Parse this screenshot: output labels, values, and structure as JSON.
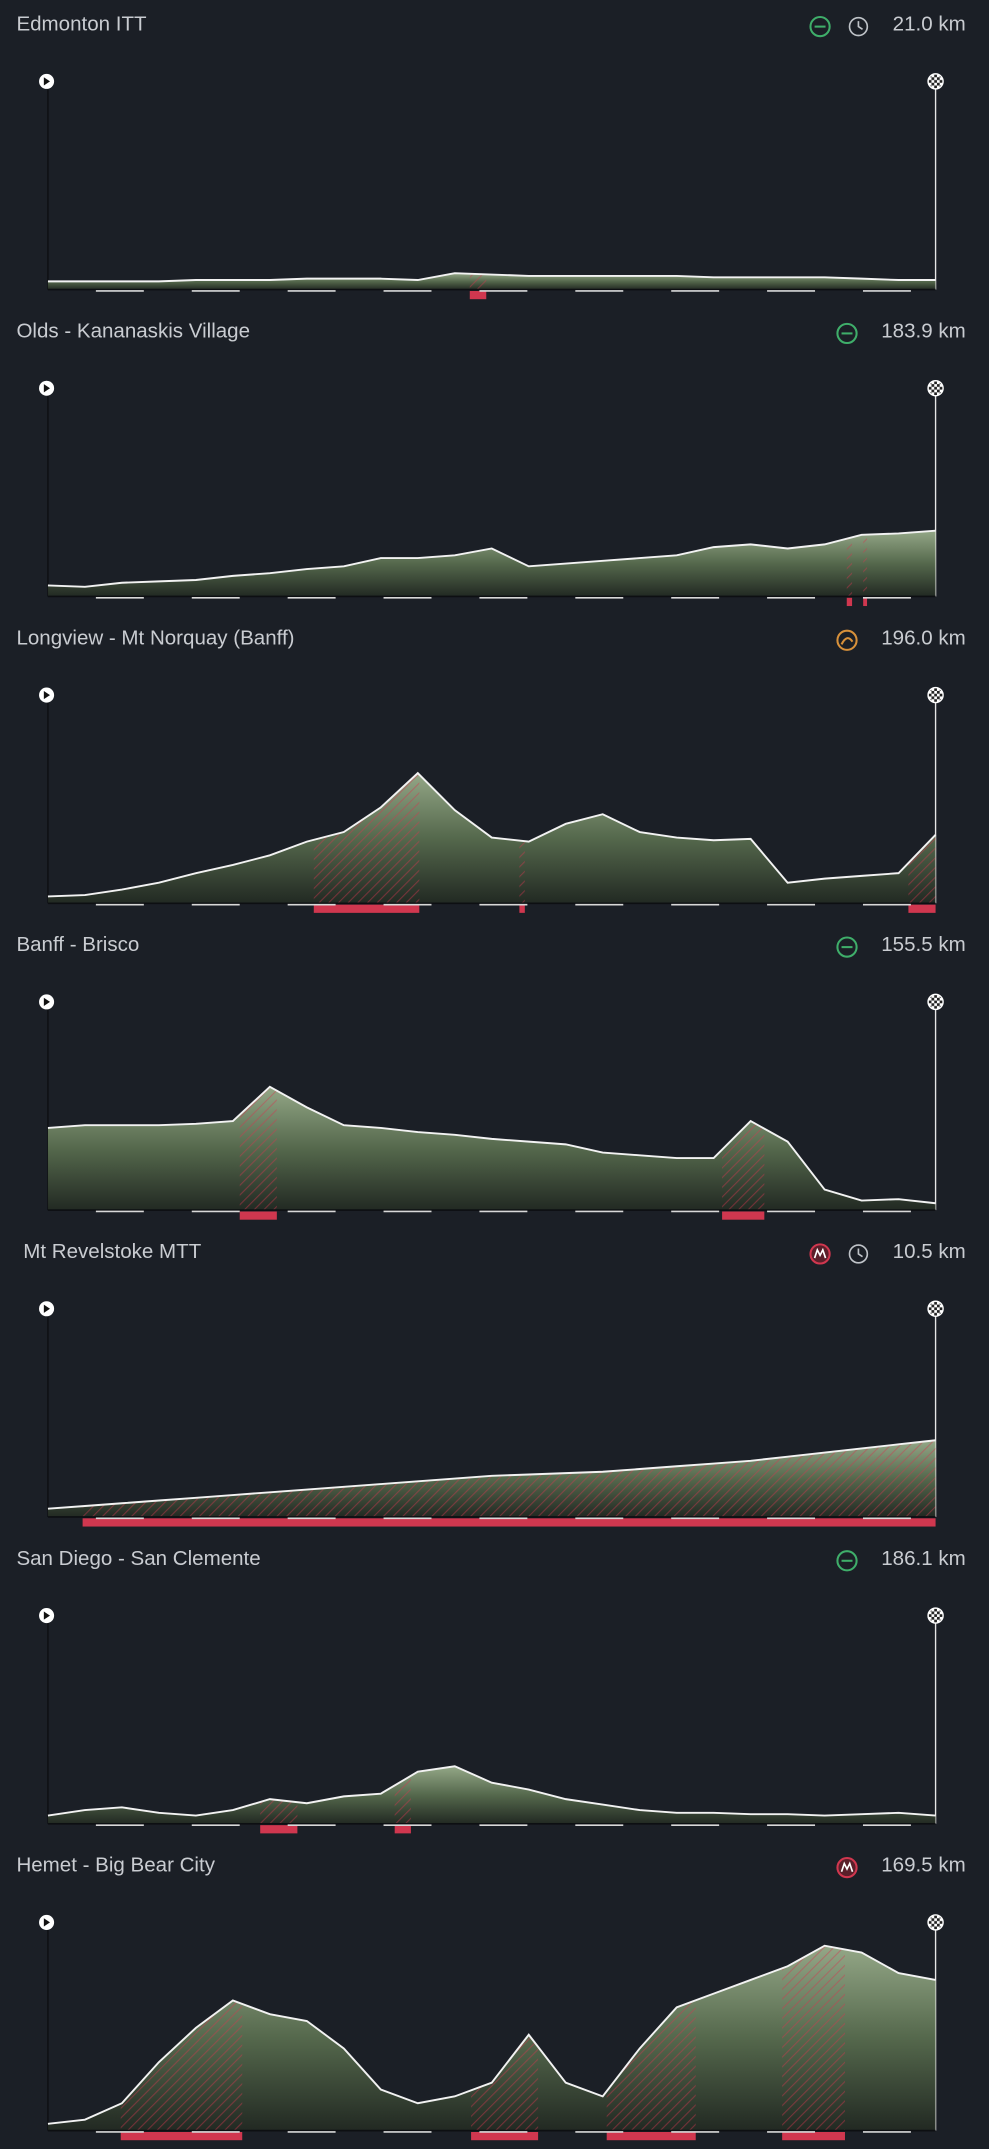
{
  "ylim": [
    0,
    160
  ],
  "stages": [
    {
      "title": "Edmonton ITT",
      "distance": 21.0,
      "distance_label": "21.0 km",
      "icons": [
        "flat",
        "itt"
      ],
      "profile": [
        6,
        6,
        6,
        6,
        7,
        7,
        7,
        8,
        8,
        8,
        7,
        12,
        11,
        10,
        10,
        10,
        10,
        10,
        9,
        9,
        9,
        9,
        8,
        7,
        7
      ],
      "climbs": [
        [
          9.98,
          10.37
        ]
      ]
    },
    {
      "title": "Olds - Kananaskis Village",
      "distance": 183.9,
      "distance_label": "183.9 km",
      "icons": [
        "flat"
      ],
      "profile": [
        8,
        7,
        10,
        11,
        12,
        15,
        17,
        20,
        22,
        28,
        28,
        30,
        35,
        22,
        24,
        26,
        28,
        30,
        36,
        38,
        35,
        38,
        45,
        46,
        48
      ],
      "climbs": [
        [
          165.5,
          166.6
        ],
        [
          168.9,
          169.7
        ]
      ]
    },
    {
      "title": "Longview - Mt Norquay (Banff)",
      "distance": 196.0,
      "distance_label": "196.0 km",
      "icons": [
        "hilly"
      ],
      "profile": [
        5,
        6,
        10,
        15,
        22,
        28,
        35,
        45,
        52,
        70,
        95,
        68,
        48,
        45,
        58,
        65,
        52,
        48,
        46,
        47,
        15,
        18,
        20,
        22,
        50
      ],
      "climbs": [
        [
          58.7,
          82.0
        ],
        [
          104.1,
          105.3
        ],
        [
          190.0,
          196.0
        ]
      ]
    },
    {
      "title": "Banff - Brisco",
      "distance": 155.5,
      "distance_label": "155.5 km",
      "icons": [
        "flat"
      ],
      "profile": [
        60,
        62,
        62,
        62,
        63,
        65,
        90,
        75,
        62,
        60,
        57,
        55,
        52,
        50,
        48,
        42,
        40,
        38,
        38,
        65,
        50,
        15,
        7,
        8,
        5
      ],
      "climbs": [
        [
          33.6,
          40.1
        ],
        [
          118.1,
          125.5
        ]
      ]
    },
    {
      "title": "Mt Revelstoke MTT",
      "distance": 10.5,
      "distance_label": "10.5 km",
      "icons": [
        "mountain",
        "itt"
      ],
      "profile": [
        6,
        8,
        10,
        12,
        14,
        16,
        18,
        20,
        22,
        24,
        26,
        28,
        30,
        31,
        32,
        33,
        35,
        37,
        39,
        41,
        44,
        47,
        50,
        53,
        56
      ],
      "climbs": [
        [
          0.41,
          10.5
        ]
      ]
    },
    {
      "title": "San Diego - San Clemente",
      "distance": 186.1,
      "distance_label": "186.1 km",
      "icons": [
        "flat"
      ],
      "profile": [
        6,
        10,
        12,
        8,
        6,
        10,
        18,
        15,
        20,
        22,
        38,
        42,
        30,
        25,
        18,
        14,
        10,
        8,
        8,
        7,
        7,
        6,
        7,
        8,
        6
      ],
      "climbs": [
        [
          44.5,
          52.3
        ],
        [
          72.7,
          76.1
        ]
      ]
    },
    {
      "title": "Hemet - Big Bear City",
      "distance": 169.5,
      "distance_label": "169.5 km",
      "icons": [
        "mountain"
      ],
      "profile": [
        5,
        8,
        20,
        50,
        75,
        95,
        85,
        80,
        60,
        30,
        20,
        25,
        35,
        70,
        35,
        25,
        60,
        90,
        100,
        110,
        120,
        135,
        130,
        115,
        110
      ],
      "climbs": [
        [
          13.9,
          37.1
        ],
        [
          80.8,
          93.6
        ],
        [
          106.7,
          123.7
        ],
        [
          140.2,
          152.2
        ]
      ]
    }
  ]
}
